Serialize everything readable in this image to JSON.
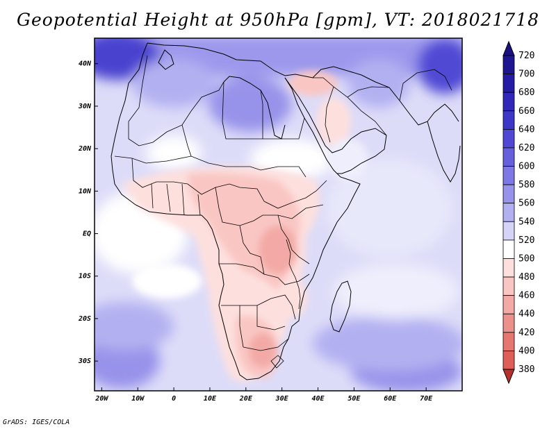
{
  "title": "Geopotential Height at 950hPa [gpm], VT: 2018021718",
  "credit": "GrADS: IGES/COLA",
  "map": {
    "variable": "Geopotential Height",
    "level": "950hPa",
    "units": "gpm",
    "valid_time": "2018021718",
    "lon_range": [
      -22,
      80
    ],
    "lat_range": [
      -37,
      46
    ],
    "lon_ticks": [
      {
        "value": -20,
        "label": "20W"
      },
      {
        "value": -10,
        "label": "10W"
      },
      {
        "value": 0,
        "label": "0"
      },
      {
        "value": 10,
        "label": "10E"
      },
      {
        "value": 20,
        "label": "20E"
      },
      {
        "value": 30,
        "label": "30E"
      },
      {
        "value": 40,
        "label": "40E"
      },
      {
        "value": 50,
        "label": "50E"
      },
      {
        "value": 60,
        "label": "60E"
      },
      {
        "value": 70,
        "label": "70E"
      }
    ],
    "lat_ticks": [
      {
        "value": 40,
        "label": "40N"
      },
      {
        "value": 30,
        "label": "30N"
      },
      {
        "value": 20,
        "label": "20N"
      },
      {
        "value": 10,
        "label": "10N"
      },
      {
        "value": 0,
        "label": "EQ"
      },
      {
        "value": -10,
        "label": "10S"
      },
      {
        "value": -20,
        "label": "20S"
      },
      {
        "value": -30,
        "label": "30S"
      }
    ]
  },
  "colorbar": {
    "levels": [
      {
        "label": "720",
        "color": "#1e1590"
      },
      {
        "label": "700",
        "color": "#241ca5"
      },
      {
        "label": "680",
        "color": "#3028b8"
      },
      {
        "label": "660",
        "color": "#3d37c8"
      },
      {
        "label": "640",
        "color": "#5048d4"
      },
      {
        "label": "620",
        "color": "#6660dc"
      },
      {
        "label": "600",
        "color": "#7d78e3"
      },
      {
        "label": "580",
        "color": "#9893ea"
      },
      {
        "label": "560",
        "color": "#b3b0f1"
      },
      {
        "label": "540",
        "color": "#d5d4f7"
      },
      {
        "label": "520",
        "color": "#ffffff"
      },
      {
        "label": "500",
        "color": "#fde0de"
      },
      {
        "label": "480",
        "color": "#f9c6c3"
      },
      {
        "label": "460",
        "color": "#f3aaa6"
      },
      {
        "label": "440",
        "color": "#ec908b"
      },
      {
        "label": "420",
        "color": "#e57670"
      },
      {
        "label": "400",
        "color": "#de5e58"
      },
      {
        "label": "380",
        "color": "#d44742"
      }
    ],
    "bottom_color": "#b8302c",
    "top_color": "#1a1080"
  }
}
